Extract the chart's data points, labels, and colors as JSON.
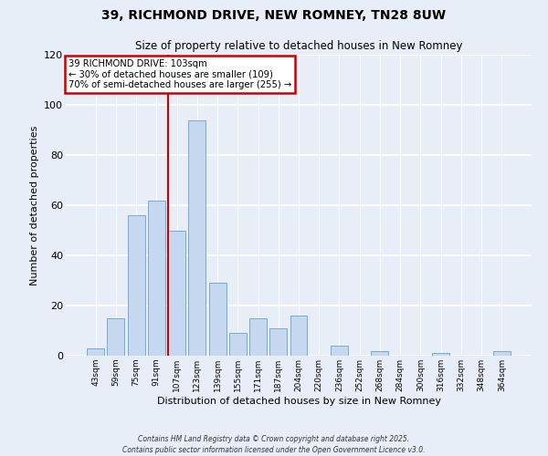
{
  "title": "39, RICHMOND DRIVE, NEW ROMNEY, TN28 8UW",
  "subtitle": "Size of property relative to detached houses in New Romney",
  "xlabel": "Distribution of detached houses by size in New Romney",
  "ylabel": "Number of detached properties",
  "bar_labels": [
    "43sqm",
    "59sqm",
    "75sqm",
    "91sqm",
    "107sqm",
    "123sqm",
    "139sqm",
    "155sqm",
    "171sqm",
    "187sqm",
    "204sqm",
    "220sqm",
    "236sqm",
    "252sqm",
    "268sqm",
    "284sqm",
    "300sqm",
    "316sqm",
    "332sqm",
    "348sqm",
    "364sqm"
  ],
  "bar_values": [
    3,
    15,
    56,
    62,
    50,
    94,
    29,
    9,
    15,
    11,
    16,
    0,
    4,
    0,
    2,
    0,
    0,
    1,
    0,
    0,
    2
  ],
  "bar_color": "#c5d8f0",
  "bar_edge_color": "#7aaad0",
  "annotation_line1": "39 RICHMOND DRIVE: 103sqm",
  "annotation_line2": "← 30% of detached houses are smaller (109)",
  "annotation_line3": "70% of semi-detached houses are larger (255) →",
  "annotation_box_facecolor": "#ffffff",
  "annotation_box_edgecolor": "#cc0000",
  "red_line_color": "#cc0000",
  "ylim": [
    0,
    120
  ],
  "yticks": [
    0,
    20,
    40,
    60,
    80,
    100,
    120
  ],
  "fig_facecolor": "#e8eef8",
  "ax_facecolor": "#e8eef8",
  "grid_color": "#ffffff",
  "footer1": "Contains HM Land Registry data © Crown copyright and database right 2025.",
  "footer2": "Contains public sector information licensed under the Open Government Licence v3.0."
}
